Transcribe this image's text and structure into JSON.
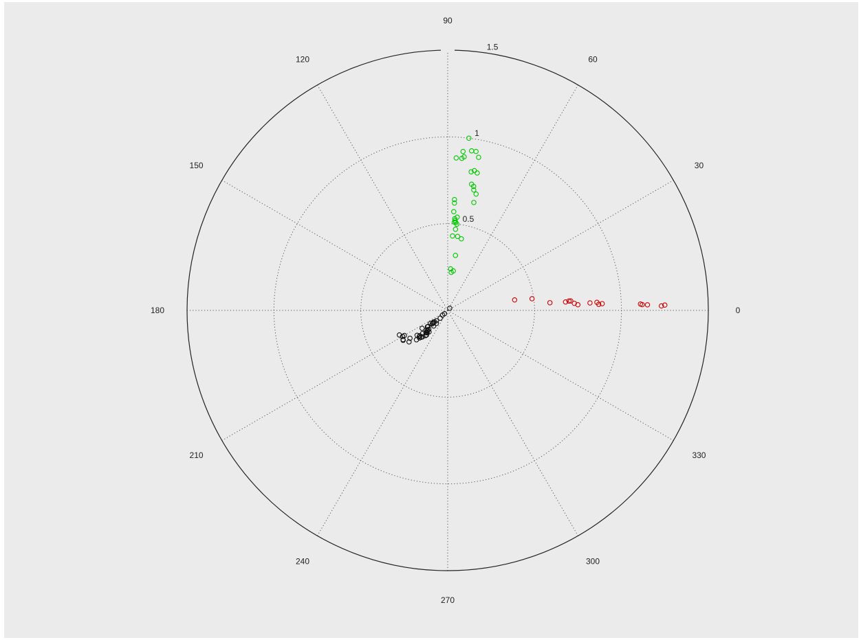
{
  "chart_data": {
    "type": "scatter",
    "coordinate_system": "polar",
    "theta_unit": "degrees",
    "r_max": 1.5,
    "r_ticks": [
      {
        "value": 0.5,
        "label": "0.5"
      },
      {
        "value": 1.0,
        "label": "1"
      },
      {
        "value": 1.5,
        "label": "1.5"
      }
    ],
    "theta_ticks": [
      {
        "value": 0,
        "label": "0"
      },
      {
        "value": 30,
        "label": "30"
      },
      {
        "value": 60,
        "label": "60"
      },
      {
        "value": 90,
        "label": "90"
      },
      {
        "value": 120,
        "label": "120"
      },
      {
        "value": 150,
        "label": "150"
      },
      {
        "value": 180,
        "label": "180"
      },
      {
        "value": 210,
        "label": "210"
      },
      {
        "value": 240,
        "label": "240"
      },
      {
        "value": 270,
        "label": "270"
      },
      {
        "value": 300,
        "label": "300"
      },
      {
        "value": 330,
        "label": "330"
      }
    ],
    "grid": true,
    "marker": "circle-open",
    "series": [
      {
        "color": "#00c800",
        "points": [
          [
            83.0,
            1.0
          ],
          [
            81.5,
            0.93
          ],
          [
            79.9,
            0.93
          ],
          [
            78.6,
            0.9
          ],
          [
            84.5,
            0.92
          ],
          [
            84.7,
            0.88
          ],
          [
            86.8,
            0.88
          ],
          [
            83.9,
            0.89
          ],
          [
            79.2,
            0.82
          ],
          [
            77.9,
            0.81
          ],
          [
            80.4,
            0.81
          ],
          [
            78.2,
            0.73
          ],
          [
            79.3,
            0.74
          ],
          [
            77.8,
            0.71
          ],
          [
            76.3,
            0.69
          ],
          [
            76.4,
            0.64
          ],
          [
            86.5,
            0.64
          ],
          [
            86.4,
            0.62
          ],
          [
            85.6,
            0.53
          ],
          [
            85.3,
            0.52
          ],
          [
            85.7,
            0.51
          ],
          [
            84.8,
            0.51
          ],
          [
            83.9,
            0.5
          ],
          [
            84.2,
            0.54
          ],
          [
            86.5,
            0.57
          ],
          [
            84.5,
            0.47
          ],
          [
            86.3,
            0.43
          ],
          [
            82.4,
            0.43
          ],
          [
            79.2,
            0.42
          ],
          [
            82.0,
            0.32
          ],
          [
            86.0,
            0.24
          ],
          [
            84.7,
            0.22
          ],
          [
            81.9,
            0.23
          ]
        ]
      },
      {
        "color": "#c80000",
        "points": [
          [
            8.9,
            0.39
          ],
          [
            7.9,
            0.49
          ],
          [
            4.3,
            0.59
          ],
          [
            4.1,
            0.68
          ],
          [
            4.4,
            0.7
          ],
          [
            4.4,
            0.71
          ],
          [
            3.2,
            0.73
          ],
          [
            2.5,
            0.75
          ],
          [
            3.0,
            0.82
          ],
          [
            3.1,
            0.86
          ],
          [
            2.3,
            0.87
          ],
          [
            2.5,
            0.89
          ],
          [
            1.9,
            1.11
          ],
          [
            1.7,
            1.12
          ],
          [
            1.6,
            1.15
          ],
          [
            1.2,
            1.23
          ],
          [
            1.4,
            1.25
          ]
        ]
      },
      {
        "color": "#111111",
        "points": [
          [
            47.0,
            0.017
          ],
          [
            225.9,
            0.026
          ],
          [
            222.3,
            0.04
          ],
          [
            226.2,
            0.062
          ],
          [
            228.9,
            0.099
          ],
          [
            222.8,
            0.088
          ],
          [
            219.6,
            0.107
          ],
          [
            220.6,
            0.101
          ],
          [
            221.2,
            0.112
          ],
          [
            221.1,
            0.118
          ],
          [
            217.1,
            0.125
          ],
          [
            228.1,
            0.121
          ],
          [
            219.4,
            0.146
          ],
          [
            225.0,
            0.154
          ],
          [
            224.4,
            0.162
          ],
          [
            219.0,
            0.15
          ],
          [
            226.3,
            0.174
          ],
          [
            225.3,
            0.165
          ],
          [
            222.7,
            0.168
          ],
          [
            229.1,
            0.164
          ],
          [
            215.1,
            0.18
          ],
          [
            227.3,
            0.174
          ],
          [
            225.9,
            0.18
          ],
          [
            229.3,
            0.187
          ],
          [
            228.8,
            0.193
          ],
          [
            222.6,
            0.197
          ],
          [
            226.5,
            0.21
          ],
          [
            224.4,
            0.227
          ],
          [
            222.2,
            0.217
          ],
          [
            222.6,
            0.222
          ],
          [
            225.4,
            0.218
          ],
          [
            219.2,
            0.227
          ],
          [
            223.3,
            0.247
          ],
          [
            216.5,
            0.27
          ],
          [
            210.1,
            0.288
          ],
          [
            210.0,
            0.3
          ],
          [
            213.2,
            0.307
          ],
          [
            219.2,
            0.287
          ],
          [
            213.9,
            0.309
          ],
          [
            207.0,
            0.312
          ]
        ]
      }
    ]
  }
}
